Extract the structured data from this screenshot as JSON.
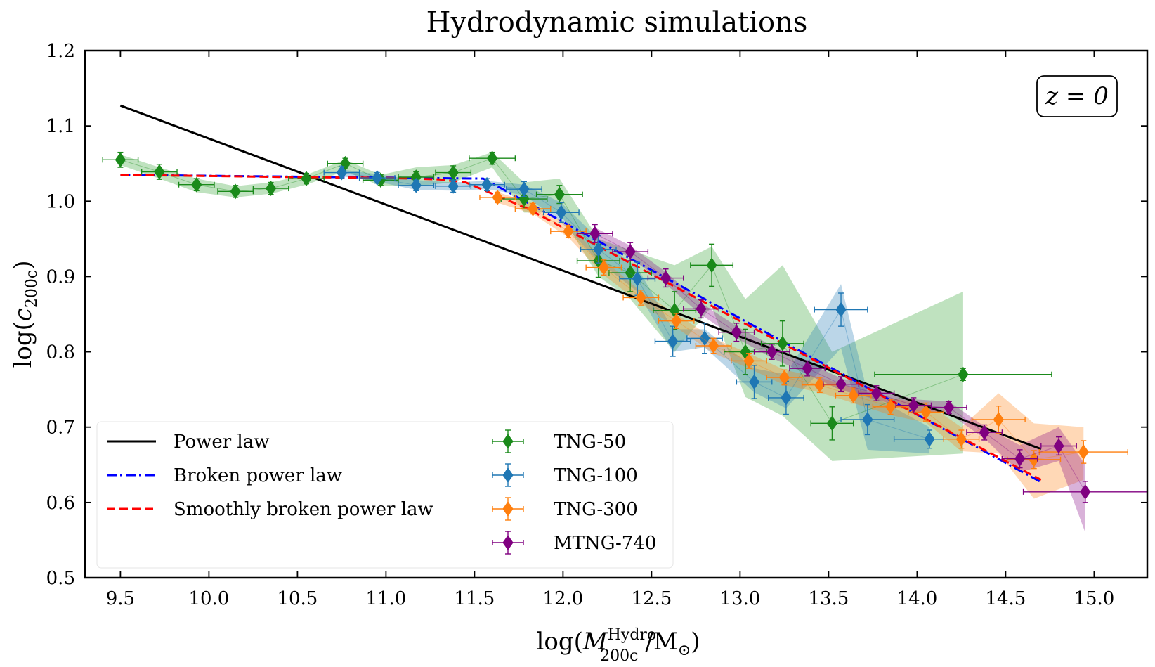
{
  "chart_data": {
    "type": "line",
    "title": "Hydrodynamic simulations",
    "xlabel": "log(M_200c^Hydro / M_sun)",
    "ylabel": "log(c_200c)",
    "xlabel_parts": {
      "pre": "log(",
      "symbol": "M",
      "sup": "Hydro",
      "sub": "200c",
      "post": "/M",
      "sun": "⊙",
      "close": ")"
    },
    "ylabel_parts": {
      "pre": "log(",
      "symbol": "c",
      "sub": "200c",
      "close": ")"
    },
    "xlim": [
      9.3,
      15.3
    ],
    "ylim": [
      0.5,
      1.2
    ],
    "xticks": [
      "9.5",
      "10.0",
      "10.5",
      "11.0",
      "11.5",
      "12.0",
      "12.5",
      "13.0",
      "13.5",
      "14.0",
      "14.5",
      "15.0"
    ],
    "yticks": [
      "0.5",
      "0.6",
      "0.7",
      "0.8",
      "0.9",
      "1.0",
      "1.1",
      "1.2"
    ],
    "annotation": "z = 0",
    "legend_position": "lower-left",
    "models": [
      {
        "name": "Power law",
        "color": "#000000",
        "style": "solid",
        "x": [
          9.5,
          14.7
        ],
        "y": [
          1.127,
          0.671
        ]
      },
      {
        "name": "Broken power law",
        "color": "#0000ff",
        "style": "dashdot",
        "x": [
          9.5,
          11.55,
          14.7
        ],
        "y": [
          1.035,
          1.03,
          0.627
        ]
      },
      {
        "name": "Smoothly broken power law",
        "color": "#ff0000",
        "style": "dashed",
        "x": [
          9.5,
          10.5,
          11.0,
          11.3,
          11.45,
          11.55,
          11.65,
          11.8,
          12.0,
          14.7
        ],
        "y": [
          1.035,
          1.032,
          1.031,
          1.029,
          1.025,
          1.015,
          1.005,
          0.99,
          0.965,
          0.63
        ]
      }
    ],
    "series": [
      {
        "name": "TNG-50",
        "color": "#1a8a1a",
        "band_color": "#2ca02c",
        "x": [
          9.5,
          9.72,
          9.93,
          10.15,
          10.35,
          10.55,
          10.77,
          10.97,
          11.17,
          11.38,
          11.6,
          11.78,
          11.98,
          12.2,
          12.38,
          12.63,
          12.84,
          13.03,
          13.24,
          13.52,
          14.26
        ],
        "y": [
          1.055,
          1.039,
          1.022,
          1.013,
          1.017,
          1.03,
          1.05,
          1.028,
          1.032,
          1.038,
          1.057,
          1.003,
          1.009,
          0.921,
          0.905,
          0.855,
          0.915,
          0.8,
          0.811,
          0.705,
          0.77
        ],
        "yerr": [
          0.01,
          0.01,
          0.008,
          0.008,
          0.008,
          0.007,
          0.007,
          0.007,
          0.007,
          0.009,
          0.008,
          0.013,
          0.012,
          0.022,
          0.025,
          0.025,
          0.028,
          0.03,
          0.03,
          0.022,
          0.008
        ],
        "xerr": [
          0.1,
          0.1,
          0.1,
          0.1,
          0.1,
          0.1,
          0.1,
          0.1,
          0.1,
          0.1,
          0.13,
          0.13,
          0.13,
          0.12,
          0.12,
          0.12,
          0.12,
          0.12,
          0.12,
          0.12,
          0.5
        ],
        "band_hi": [
          1.062,
          1.045,
          1.03,
          1.02,
          1.025,
          1.035,
          1.055,
          1.035,
          1.045,
          1.048,
          1.065,
          1.025,
          1.03,
          0.95,
          0.935,
          0.915,
          0.94,
          0.87,
          0.915,
          0.8,
          0.88
        ],
        "band_lo": [
          1.048,
          1.03,
          1.012,
          1.005,
          1.01,
          1.022,
          1.04,
          1.02,
          1.02,
          1.025,
          1.045,
          0.985,
          0.985,
          0.9,
          0.87,
          0.8,
          0.86,
          0.74,
          0.715,
          0.655,
          0.665
        ]
      },
      {
        "name": "TNG-100",
        "color": "#1f77b4",
        "band_color": "#1f77b4",
        "x": [
          10.75,
          10.95,
          11.17,
          11.38,
          11.57,
          11.78,
          11.99,
          12.2,
          12.42,
          12.62,
          12.8,
          13.08,
          13.26,
          13.57,
          13.72,
          14.07
        ],
        "y": [
          1.038,
          1.031,
          1.021,
          1.02,
          1.022,
          1.016,
          0.985,
          0.936,
          0.897,
          0.814,
          0.818,
          0.76,
          0.739,
          0.856,
          0.71,
          0.684
        ],
        "yerr": [
          0.008,
          0.007,
          0.007,
          0.008,
          0.008,
          0.01,
          0.013,
          0.018,
          0.022,
          0.02,
          0.02,
          0.022,
          0.022,
          0.022,
          0.02,
          0.012
        ],
        "xerr": [
          0.1,
          0.1,
          0.1,
          0.1,
          0.1,
          0.1,
          0.1,
          0.1,
          0.1,
          0.1,
          0.1,
          0.1,
          0.1,
          0.15,
          0.15,
          0.2
        ],
        "band_hi": [
          1.042,
          1.036,
          1.028,
          1.025,
          1.027,
          1.022,
          0.998,
          0.95,
          0.912,
          0.83,
          0.83,
          0.778,
          0.77,
          0.89,
          0.745,
          0.7
        ],
        "band_lo": [
          1.033,
          1.026,
          1.015,
          1.014,
          1.016,
          1.008,
          0.972,
          0.92,
          0.88,
          0.8,
          0.806,
          0.746,
          0.725,
          0.805,
          0.67,
          0.665
        ]
      },
      {
        "name": "TNG-300",
        "color": "#ff7f0e",
        "band_color": "#ff7f0e",
        "x": [
          11.63,
          11.83,
          12.03,
          12.23,
          12.44,
          12.64,
          12.85,
          13.05,
          13.25,
          13.45,
          13.64,
          13.85,
          14.05,
          14.25,
          14.46,
          14.66,
          14.94
        ],
        "y": [
          1.005,
          0.99,
          0.96,
          0.912,
          0.872,
          0.841,
          0.808,
          0.788,
          0.766,
          0.756,
          0.742,
          0.727,
          0.72,
          0.684,
          0.71,
          0.657,
          0.667
        ],
        "yerr": [
          0.007,
          0.007,
          0.008,
          0.01,
          0.01,
          0.01,
          0.01,
          0.01,
          0.01,
          0.01,
          0.01,
          0.01,
          0.012,
          0.012,
          0.018,
          0.012,
          0.015
        ],
        "xerr": [
          0.1,
          0.1,
          0.1,
          0.1,
          0.1,
          0.1,
          0.1,
          0.1,
          0.1,
          0.1,
          0.1,
          0.1,
          0.1,
          0.1,
          0.15,
          0.15,
          0.25
        ],
        "band_hi": [
          1.012,
          0.997,
          0.968,
          0.922,
          0.88,
          0.85,
          0.818,
          0.798,
          0.776,
          0.766,
          0.752,
          0.738,
          0.732,
          0.7,
          0.745,
          0.705,
          0.7
        ],
        "band_lo": [
          0.998,
          0.983,
          0.952,
          0.902,
          0.864,
          0.832,
          0.798,
          0.778,
          0.756,
          0.746,
          0.732,
          0.716,
          0.706,
          0.668,
          0.665,
          0.605,
          0.63
        ]
      },
      {
        "name": "MTNG-740",
        "color": "#800080",
        "band_color": "#800080",
        "x": [
          12.18,
          12.38,
          12.58,
          12.78,
          12.98,
          13.18,
          13.38,
          13.57,
          13.77,
          13.98,
          14.18,
          14.38,
          14.58,
          14.8,
          14.95
        ],
        "y": [
          0.957,
          0.933,
          0.898,
          0.857,
          0.826,
          0.8,
          0.778,
          0.757,
          0.745,
          0.729,
          0.726,
          0.693,
          0.658,
          0.675,
          0.614
        ],
        "yerr": [
          0.012,
          0.012,
          0.012,
          0.012,
          0.012,
          0.01,
          0.01,
          0.01,
          0.01,
          0.01,
          0.008,
          0.01,
          0.012,
          0.012,
          0.014
        ],
        "xerr": [
          0.1,
          0.1,
          0.1,
          0.1,
          0.1,
          0.1,
          0.1,
          0.1,
          0.1,
          0.1,
          0.1,
          0.1,
          0.1,
          0.1,
          0.35
        ],
        "band_hi": [
          0.965,
          0.941,
          0.906,
          0.865,
          0.834,
          0.808,
          0.786,
          0.765,
          0.753,
          0.737,
          0.734,
          0.701,
          0.676,
          0.7,
          0.65
        ],
        "band_lo": [
          0.949,
          0.925,
          0.89,
          0.849,
          0.818,
          0.792,
          0.77,
          0.749,
          0.737,
          0.721,
          0.718,
          0.685,
          0.64,
          0.655,
          0.56
        ]
      }
    ]
  }
}
